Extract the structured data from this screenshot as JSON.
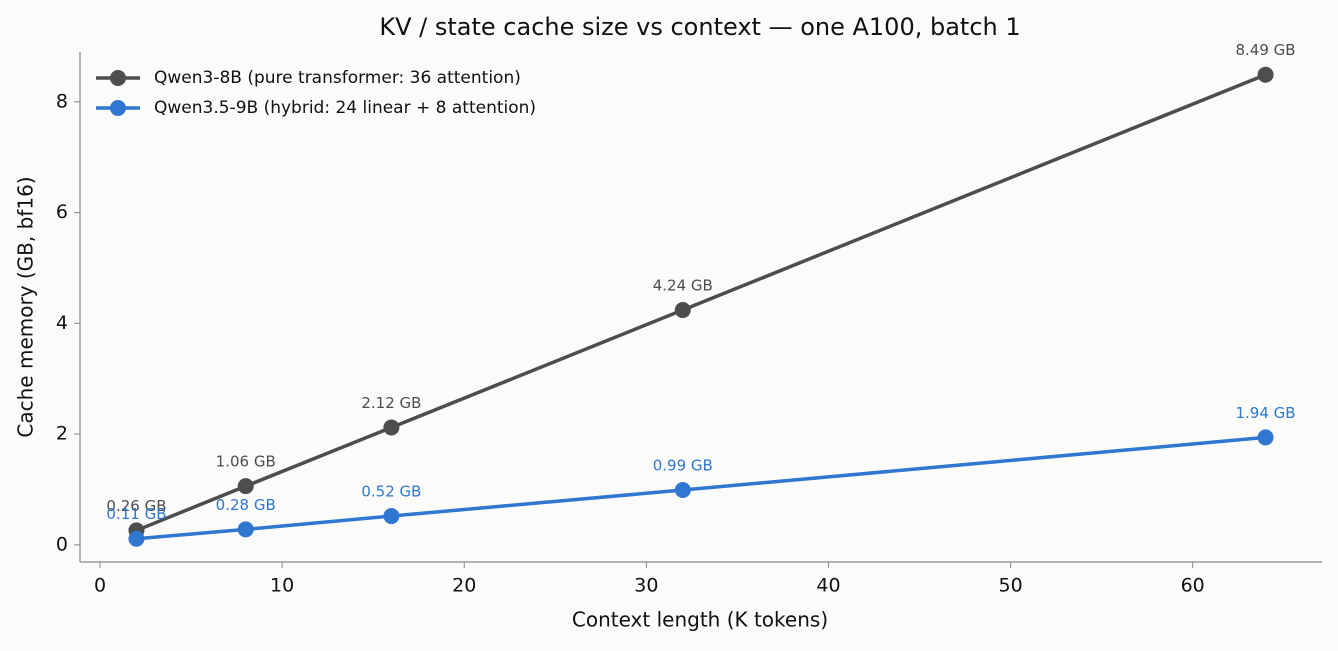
{
  "chart_data": {
    "type": "line",
    "title": "KV / state cache size vs context — one A100, batch 1",
    "x_label": "Context length (K tokens)",
    "y_label": "Cache memory (GB, bf16)",
    "x": [
      2,
      8,
      16,
      32,
      64
    ],
    "series": [
      {
        "name": "Qwen3-8B (pure transformer: 36 attention)",
        "color": "#4d4d4d",
        "values": [
          0.26,
          1.06,
          2.12,
          4.24,
          8.49
        ],
        "value_labels": [
          "0.26 GB",
          "1.06 GB",
          "2.12 GB",
          "4.24 GB",
          "8.49 GB"
        ]
      },
      {
        "name": "Qwen3.5-9B (hybrid: 24 linear + 8 attention)",
        "color": "#2f77d1",
        "values": [
          0.11,
          0.28,
          0.52,
          0.99,
          1.94
        ],
        "value_labels": [
          "0.11 GB",
          "0.28 GB",
          "0.52 GB",
          "0.99 GB",
          "1.94 GB"
        ]
      }
    ],
    "xlim": [
      -1.1,
      67.1
    ],
    "ylim": [
      -0.31,
      8.9
    ],
    "xticks": [
      0,
      10,
      20,
      30,
      40,
      50,
      60
    ],
    "yticks": [
      0,
      2,
      4,
      6,
      8
    ],
    "legend": "upper left",
    "grid": false
  }
}
